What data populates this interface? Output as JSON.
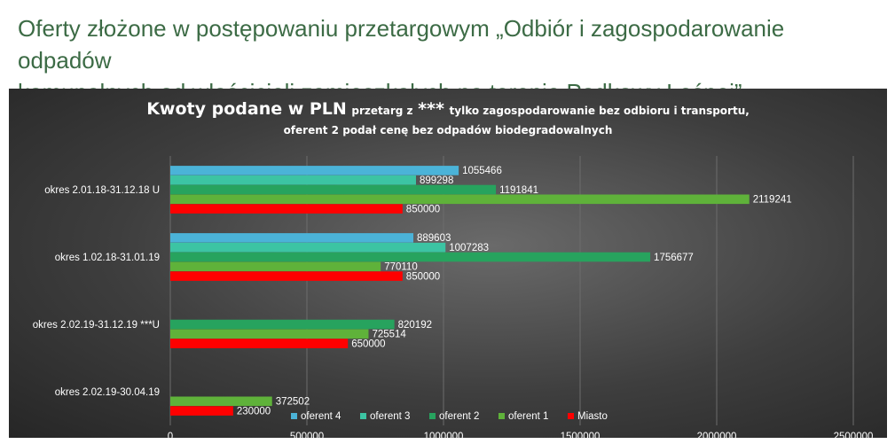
{
  "heading": {
    "line1": "Oferty złożone w postępowaniu przetargowym „Odbiór i zagospodarowanie odpadów",
    "line2": "komunalnych od właścicieli zamieszkałych na terenie Podkowy Leśnej”"
  },
  "chart_data": {
    "type": "bar",
    "orientation": "horizontal",
    "title": {
      "part1": "Kwoty podane w PLN",
      "part2": "przetarg z",
      "stars": "***",
      "part3": "tylko zagospodarowanie bez odbioru i transportu,",
      "line2": "oferent 2 podał cenę bez odpadów biodegradowalnych"
    },
    "categories": [
      "okres 2.01.18-31.12.18 U",
      "okres 1.02.18-31.01.19",
      "okres 2.02.19-31.12.19 ***U",
      "okres 2.02.19-30.04.19"
    ],
    "series": [
      {
        "name": "oferent 4",
        "color": "#4bb3d8",
        "values": [
          1055466,
          889603,
          null,
          null
        ]
      },
      {
        "name": "oferent 3",
        "color": "#3cc4a3",
        "values": [
          899298,
          1007283,
          null,
          null
        ]
      },
      {
        "name": "oferent 2",
        "color": "#27a35e",
        "values": [
          1191841,
          1756677,
          820192,
          null
        ]
      },
      {
        "name": "oferent 1",
        "color": "#5fb23a",
        "values": [
          2119241,
          770110,
          725514,
          372502
        ]
      },
      {
        "name": "Miasto",
        "color": "#ff0000",
        "values": [
          850000,
          850000,
          650000,
          230000
        ]
      }
    ],
    "xlim": [
      0,
      2500000
    ],
    "xticks": [
      0,
      500000,
      1000000,
      1500000,
      2000000,
      2500000
    ],
    "grid": true,
    "legend": "bottom"
  }
}
